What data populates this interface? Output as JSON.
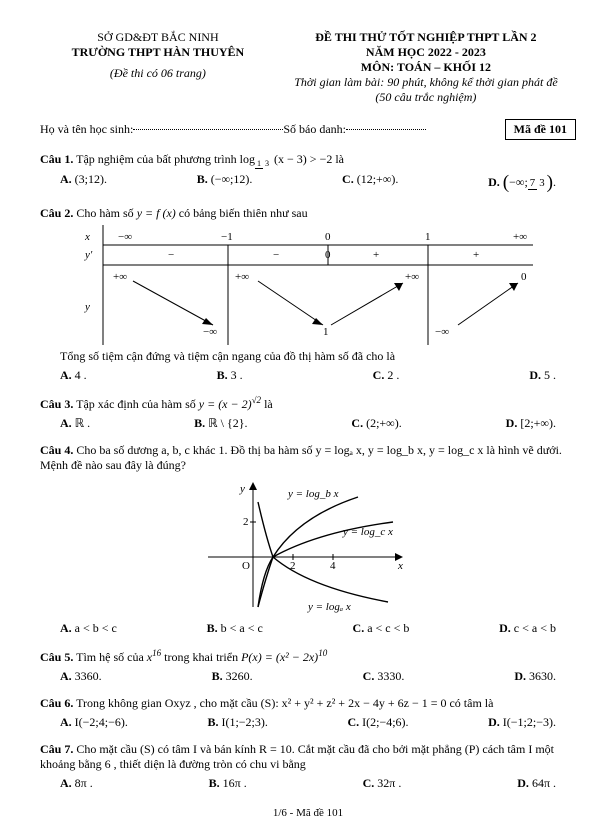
{
  "header": {
    "left1": "SỞ GD&ĐT BẮC NINH",
    "left2": "TRƯỜNG THPT HÀN THUYÊN",
    "left3": "(Đề thi có 06 trang)",
    "right1": "ĐỀ THI THỬ TỐT NGHIỆP THPT LẦN 2",
    "right2": "NĂM HỌC 2022 - 2023",
    "right3": "MÔN: TOÁN – KHỐI 12",
    "right4": "Thời gian làm bài: 90 phút, không kể thời gian phát đề",
    "right5": "(50 câu trắc nghiệm)"
  },
  "student": {
    "name_label": "Họ và tên học sinh: ",
    "num_label": " Số báo danh: ",
    "code": "Mã đề 101"
  },
  "q1": {
    "text": "Câu 1. Tập nghiệm của bất phương trình  log",
    "tail": "(x − 3) > −2 là",
    "A": "A. (3;12).",
    "B": "B. (−∞;12).",
    "C": "C. (12;+∞).",
    "D": "D. "
  },
  "q2": {
    "text": "Câu 2. Cho hàm số  y = f (x)  có bảng biến thiên như sau",
    "note": "Tổng số tiệm cận đứng và tiệm cận ngang của đồ thị hàm số đã cho là",
    "A": "A. 4 .",
    "B": "B. 3 .",
    "C": "C. 2 .",
    "D": "D. 5 .",
    "table": {
      "headers": [
        "x",
        "−∞",
        "−1",
        "0",
        "1",
        "+∞"
      ],
      "yp": [
        "y′",
        "−",
        "−",
        "0",
        "+",
        "+"
      ],
      "vals": [
        "+∞",
        "+∞",
        "+∞",
        "0",
        "−∞",
        "1",
        "−∞"
      ]
    }
  },
  "q3": {
    "text": "Câu 3. Tập xác định của hàm số  y = (x − 2)^√2  là",
    "A": "A. ℝ .",
    "B": "B. ℝ \\ {2}.",
    "C": "C. (2;+∞).",
    "D": "D. [2;+∞)."
  },
  "q4": {
    "text": "Câu 4. Cho ba số dương a, b, c khác 1. Đồ thị ba hàm số  y = logₐ x,  y = log_b x,  y = log_c x  là hình vẽ dưới. Mệnh đề nào sau đây là đúng?",
    "A": "A. a < b < c",
    "B": "B. b < a < c",
    "C": "C. a < c < b",
    "D": "D. c < a < b",
    "chart": {
      "bg": "#ffffff",
      "axis_color": "#000000",
      "curve_color": "#000000",
      "label_color": "#000000",
      "title_fontsize": 12,
      "xlim": [
        0,
        5
      ],
      "ylim": [
        -3,
        3
      ],
      "labels": {
        "top": "y = log_b x",
        "mid": "y = log_c x",
        "bot": "y = logₐ x"
      }
    }
  },
  "q5": {
    "text": "Câu 5. Tìm hệ số của x^16 trong khai triển P(x) = (x² − 2x)^10",
    "A": "A. 3360.",
    "B": "B. 3260.",
    "C": "C. 3330.",
    "D": "D. 3630."
  },
  "q6": {
    "text": "Câu 6. Trong không gian Oxyz , cho mặt cầu (S): x² + y² + z² + 2x − 4y + 6z − 1 = 0 có tâm là",
    "A": "A. I(−2;4;−6).",
    "B": "B. I(1;−2;3).",
    "C": "C. I(2;−4;6).",
    "D": "D. I(−1;2;−3)."
  },
  "q7": {
    "text": "Câu 7. Cho mặt cầu (S) có tâm I và bán kính R = 10. Cắt mặt cầu đã cho bởi mặt phẳng (P) cách tâm I một khoảng bằng 6 , thiết diện là đường tròn có chu vi bằng",
    "A": "A. 8π .",
    "B": "B. 16π .",
    "C": "C. 32π .",
    "D": "D. 64π ."
  },
  "footer": "1/6 - Mã đề 101"
}
